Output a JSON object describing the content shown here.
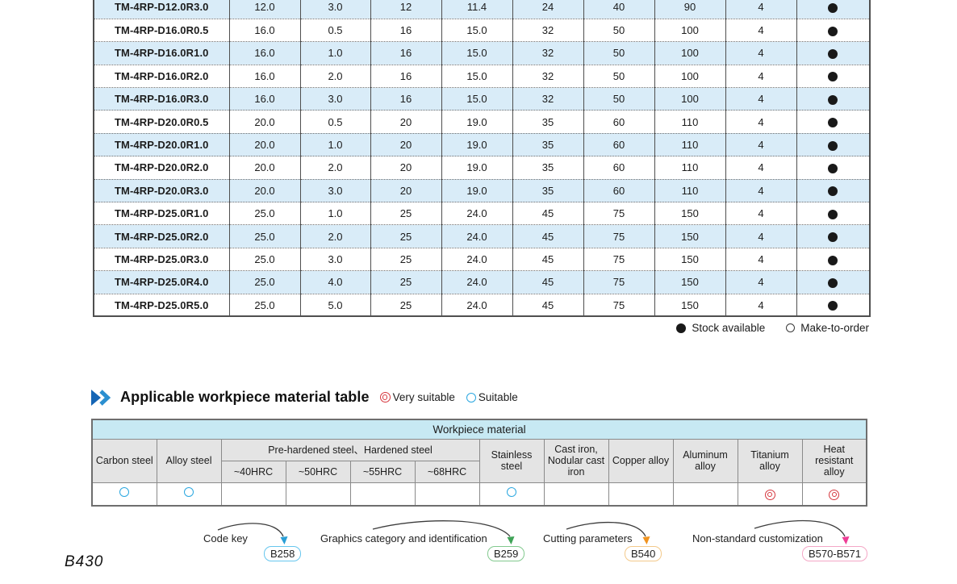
{
  "page": {
    "page_number": "B430"
  },
  "main_table": {
    "rows": [
      {
        "name": "TM-4RP-D12.0R3.0",
        "values": [
          "12.0",
          "3.0",
          "12",
          "11.4",
          "24",
          "40",
          "90",
          "4"
        ],
        "stock": "available"
      },
      {
        "name": "TM-4RP-D16.0R0.5",
        "values": [
          "16.0",
          "0.5",
          "16",
          "15.0",
          "32",
          "50",
          "100",
          "4"
        ],
        "stock": "available"
      },
      {
        "name": "TM-4RP-D16.0R1.0",
        "values": [
          "16.0",
          "1.0",
          "16",
          "15.0",
          "32",
          "50",
          "100",
          "4"
        ],
        "stock": "available"
      },
      {
        "name": "TM-4RP-D16.0R2.0",
        "values": [
          "16.0",
          "2.0",
          "16",
          "15.0",
          "32",
          "50",
          "100",
          "4"
        ],
        "stock": "available"
      },
      {
        "name": "TM-4RP-D16.0R3.0",
        "values": [
          "16.0",
          "3.0",
          "16",
          "15.0",
          "32",
          "50",
          "100",
          "4"
        ],
        "stock": "available"
      },
      {
        "name": "TM-4RP-D20.0R0.5",
        "values": [
          "20.0",
          "0.5",
          "20",
          "19.0",
          "35",
          "60",
          "110",
          "4"
        ],
        "stock": "available"
      },
      {
        "name": "TM-4RP-D20.0R1.0",
        "values": [
          "20.0",
          "1.0",
          "20",
          "19.0",
          "35",
          "60",
          "110",
          "4"
        ],
        "stock": "available"
      },
      {
        "name": "TM-4RP-D20.0R2.0",
        "values": [
          "20.0",
          "2.0",
          "20",
          "19.0",
          "35",
          "60",
          "110",
          "4"
        ],
        "stock": "available"
      },
      {
        "name": "TM-4RP-D20.0R3.0",
        "values": [
          "20.0",
          "3.0",
          "20",
          "19.0",
          "35",
          "60",
          "110",
          "4"
        ],
        "stock": "available"
      },
      {
        "name": "TM-4RP-D25.0R1.0",
        "values": [
          "25.0",
          "1.0",
          "25",
          "24.0",
          "45",
          "75",
          "150",
          "4"
        ],
        "stock": "available"
      },
      {
        "name": "TM-4RP-D25.0R2.0",
        "values": [
          "25.0",
          "2.0",
          "25",
          "24.0",
          "45",
          "75",
          "150",
          "4"
        ],
        "stock": "available"
      },
      {
        "name": "TM-4RP-D25.0R3.0",
        "values": [
          "25.0",
          "3.0",
          "25",
          "24.0",
          "45",
          "75",
          "150",
          "4"
        ],
        "stock": "available"
      },
      {
        "name": "TM-4RP-D25.0R4.0",
        "values": [
          "25.0",
          "4.0",
          "25",
          "24.0",
          "45",
          "75",
          "150",
          "4"
        ],
        "stock": "available"
      },
      {
        "name": "TM-4RP-D25.0R5.0",
        "values": [
          "25.0",
          "5.0",
          "25",
          "24.0",
          "45",
          "75",
          "150",
          "4"
        ],
        "stock": "available"
      }
    ],
    "legend": {
      "stock_available": "Stock available",
      "make_to_order": "Make-to-order"
    }
  },
  "section": {
    "title": "Applicable workpiece material table",
    "legend": {
      "very_suitable": "Very suitable",
      "suitable": "Suitable"
    }
  },
  "workpiece_table": {
    "title": "Workpiece material",
    "headers": {
      "carbon_steel": "Carbon steel",
      "alloy_steel": "Alloy steel",
      "prehardened_group": "Pre-hardened steel、Hardened steel",
      "hrc_levels": [
        "~40HRC",
        "~50HRC",
        "~55HRC",
        "~68HRC"
      ],
      "stainless_steel": "Stainless steel",
      "cast_iron": "Cast iron, Nodular cast iron",
      "copper_alloy": "Copper alloy",
      "aluminum_alloy": "Aluminum alloy",
      "titanium_alloy": "Titanium alloy",
      "heat_resistant_alloy": "Heat resistant alloy"
    },
    "ratings": [
      "suitable",
      "suitable",
      "none",
      "none",
      "none",
      "none",
      "suitable",
      "none",
      "none",
      "none",
      "very_suitable",
      "very_suitable"
    ]
  },
  "references": [
    {
      "label": "Code key",
      "page": "B258",
      "badge_color": "#66c6ee",
      "arrow_color": "#2b9fd6"
    },
    {
      "label": "Graphics category and identification",
      "page": "B259",
      "badge_color": "#82c98e",
      "arrow_color": "#3fa357"
    },
    {
      "label": "Cutting parameters",
      "page": "B540",
      "badge_color": "#f3c98a",
      "arrow_color": "#f0931f"
    },
    {
      "label": "Non-standard customization",
      "page": "B570-B571",
      "badge_color": "#f4a7c6",
      "arrow_color": "#ee3d96"
    }
  ],
  "colors": {
    "row_alt": "#d9ecf8",
    "wp_title_bg": "#c7e9f3",
    "wp_head_bg": "#e4e4e4",
    "suitable_blue": "#2aa7e0",
    "very_suitable_red": "#d6373e",
    "stock_dot": "#191919"
  }
}
